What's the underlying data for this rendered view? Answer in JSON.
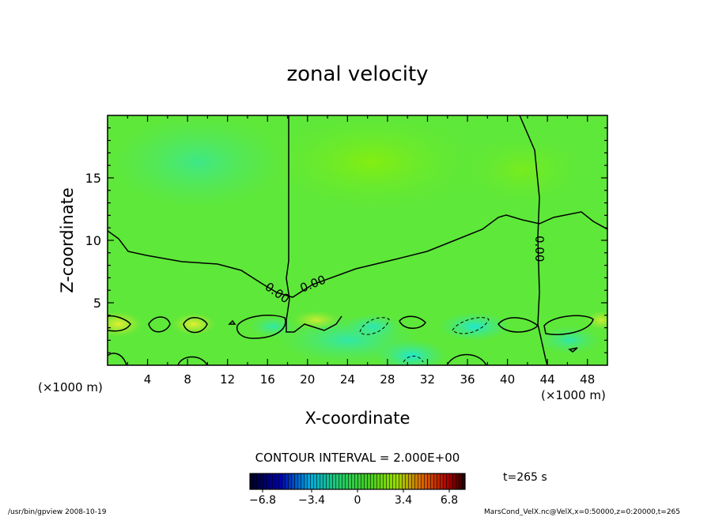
{
  "chart_data": {
    "type": "heatmap",
    "title": "zonal velocity",
    "xlabel": "X-coordinate",
    "ylabel": "Z-coordinate",
    "x_unit": "(×1000 m)",
    "y_unit": "(×1000 m)",
    "xlim": [
      0,
      50
    ],
    "ylim": [
      0,
      20
    ],
    "x_ticks": [
      4,
      8,
      12,
      16,
      20,
      24,
      28,
      32,
      36,
      40,
      44,
      48
    ],
    "y_ticks": [
      5,
      10,
      15
    ],
    "contour_interval_text": "CONTOUR INTERVAL = 2.000E+00",
    "contour_labels": [
      "0.00",
      "0.00",
      "0.00"
    ],
    "colorbar": {
      "range": [
        -6.8,
        6.8
      ],
      "ticks": [
        "−6.8",
        "−3.4",
        "0",
        "3.4",
        "6.8"
      ],
      "colors": [
        "#000033",
        "#0000aa",
        "#00bbee",
        "#33cc33",
        "#99ee00",
        "#ee7700",
        "#aa0000",
        "#330000"
      ]
    },
    "time_text": "t=265 s",
    "footer_left": "/usr/bin/gpview   2008-10-19",
    "footer_right": "MarsCond_VelX.nc@VelX,x=0:50000,z=0:20000,t=265"
  }
}
